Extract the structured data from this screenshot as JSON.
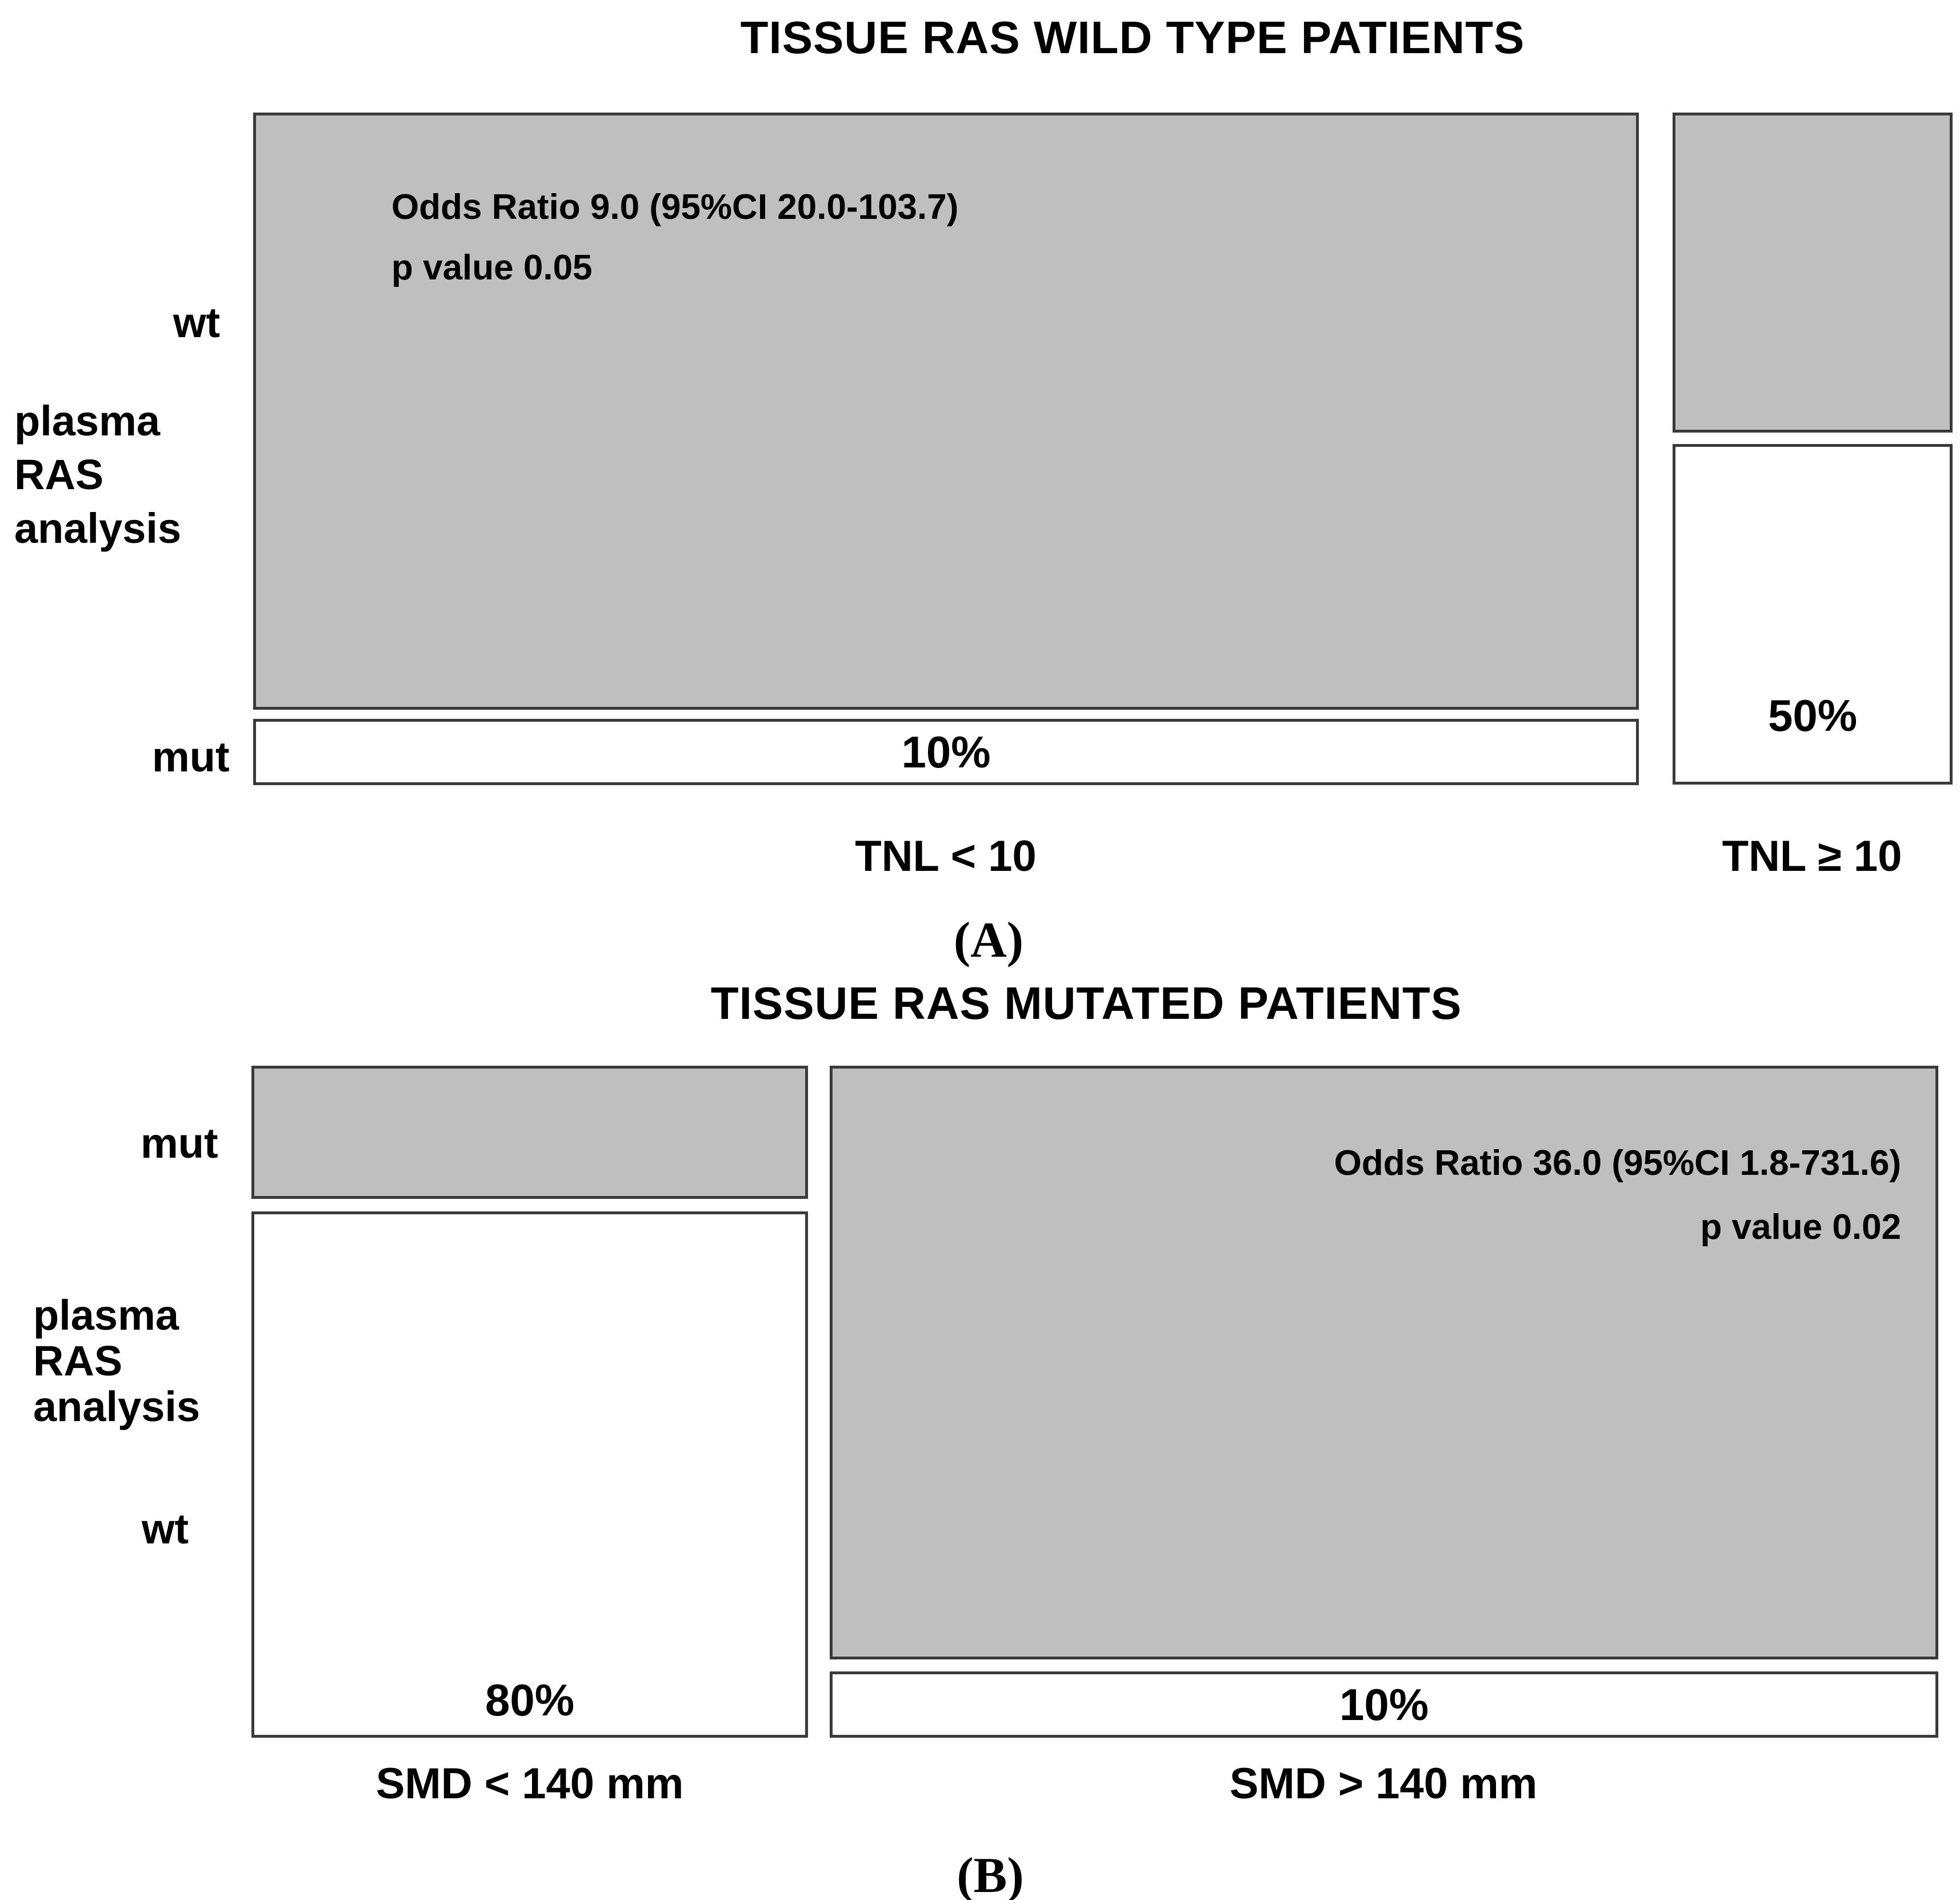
{
  "figure": {
    "colors": {
      "shaded": "#bfbfbf",
      "box_border": "#3a3a3a",
      "text": "#000000",
      "background": "#ffffff"
    },
    "panel_a": {
      "title": "TISSUE RAS WILD TYPE PATIENTS",
      "panel_label": "(A)",
      "y_axis": {
        "top_row_label": "wt",
        "axis_label_lines": [
          "plasma",
          "RAS",
          "analysis"
        ],
        "bottom_row_label": "mut"
      },
      "annotation": {
        "line1": "Odds Ratio 9.0 (95%CI 20.0-103.7)",
        "line2": "p value 0.05"
      },
      "columns": [
        {
          "x_label": "TNL < 10",
          "mut_percent": "10%"
        },
        {
          "x_label": "TNL ≥ 10",
          "mut_percent": "50%"
        }
      ]
    },
    "panel_b": {
      "title": "TISSUE RAS MUTATED PATIENTS",
      "panel_label": "(B)",
      "y_axis": {
        "top_row_label": "mut",
        "axis_label_lines": [
          "plasma",
          "RAS",
          "analysis"
        ],
        "bottom_row_label": "wt"
      },
      "annotation": {
        "line1": "Odds Ratio 36.0 (95%CI 1.8-731.6)",
        "line2": "p value 0.02"
      },
      "columns": [
        {
          "x_label": "SMD < 140 mm",
          "wt_percent": "80%"
        },
        {
          "x_label": "SMD > 140 mm",
          "wt_percent": "10%"
        }
      ]
    }
  },
  "chart_data": [
    {
      "type": "mosaic",
      "panel": "A",
      "title": "TISSUE RAS WILD TYPE PATIENTS",
      "x_axis": {
        "categories": [
          "TNL < 10",
          "TNL ≥ 10"
        ],
        "column_width_share_percent": [
          83,
          17
        ]
      },
      "y_axis": {
        "label": "plasma RAS analysis",
        "categories": [
          "wt",
          "mut"
        ]
      },
      "cells": [
        {
          "column": "TNL < 10",
          "row": "wt",
          "shaded": true,
          "height_percent": 90
        },
        {
          "column": "TNL < 10",
          "row": "mut",
          "shaded": false,
          "height_percent": 10,
          "label": "10%"
        },
        {
          "column": "TNL ≥ 10",
          "row": "wt",
          "shaded": true,
          "height_percent": 50
        },
        {
          "column": "TNL ≥ 10",
          "row": "mut",
          "shaded": false,
          "height_percent": 50,
          "label": "50%"
        }
      ],
      "annotation": "Odds Ratio 9.0 (95%CI 20.0-103.7), p value 0.05"
    },
    {
      "type": "mosaic",
      "panel": "B",
      "title": "TISSUE RAS MUTATED PATIENTS",
      "x_axis": {
        "categories": [
          "SMD < 140 mm",
          "SMD > 140 mm"
        ],
        "column_width_share_percent": [
          33,
          67
        ]
      },
      "y_axis": {
        "label": "plasma RAS analysis",
        "categories": [
          "mut",
          "wt"
        ]
      },
      "cells": [
        {
          "column": "SMD < 140 mm",
          "row": "mut",
          "shaded": true,
          "height_percent": 20
        },
        {
          "column": "SMD < 140 mm",
          "row": "wt",
          "shaded": false,
          "height_percent": 80,
          "label": "80%"
        },
        {
          "column": "SMD > 140 mm",
          "row": "mut",
          "shaded": true,
          "height_percent": 90
        },
        {
          "column": "SMD > 140 mm",
          "row": "wt",
          "shaded": false,
          "height_percent": 10,
          "label": "10%"
        }
      ],
      "annotation": "Odds Ratio 36.0 (95%CI 1.8-731.6), p value 0.02"
    }
  ]
}
